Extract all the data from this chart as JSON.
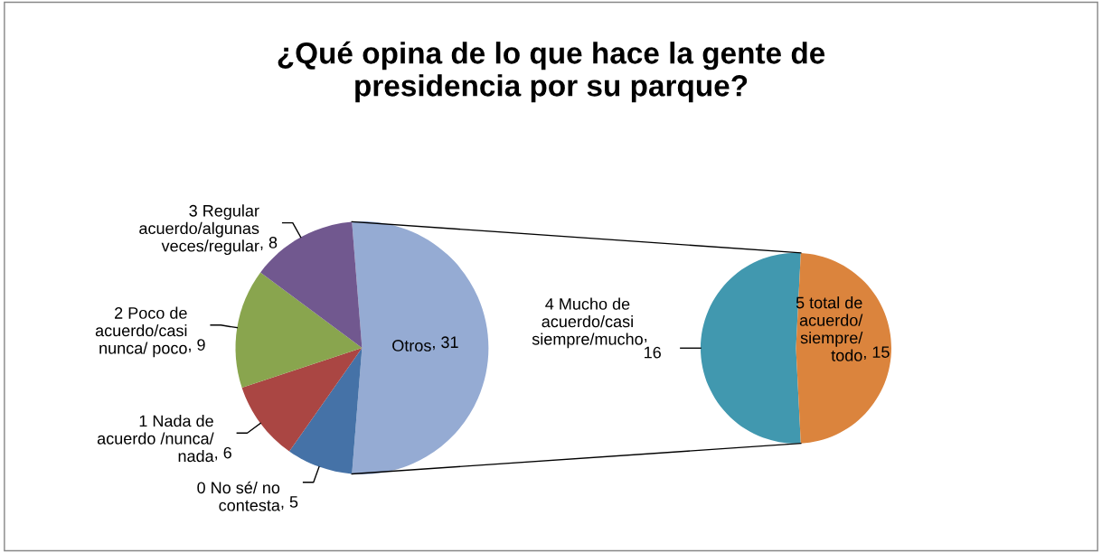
{
  "chart_data": [
    {
      "type": "pie",
      "title": "¿Qué opina de lo que hace la gente de\npresidencia por su parque?",
      "categories": [
        "Otros",
        "0 No sé/ no\ncontesta",
        "1 Nada de\nacuerdo /nunca/\nnada",
        "2 Poco de\nacuerdo/casi\nnunca/ poco",
        "3 Regular\nacuerdo/algunas\nveces/regular"
      ],
      "values": [
        31,
        5,
        6,
        9,
        8
      ],
      "colors": [
        "#95abd3",
        "#4572a7",
        "#aa4643",
        "#89a54e",
        "#71588f"
      ],
      "value_labels": [
        ", 31",
        ", 5",
        ", 6",
        ", 9",
        ", 8"
      ]
    },
    {
      "type": "pie",
      "categories": [
        "4 Mucho de\nacuerdo/casi\nsiempre/mucho",
        "5 total de\nacuerdo/\nsiempre/\ntodo"
      ],
      "values": [
        16,
        15
      ],
      "colors": [
        "#4198af",
        "#db843d"
      ],
      "value_labels": [
        ",\n16",
        ", 15"
      ]
    }
  ]
}
